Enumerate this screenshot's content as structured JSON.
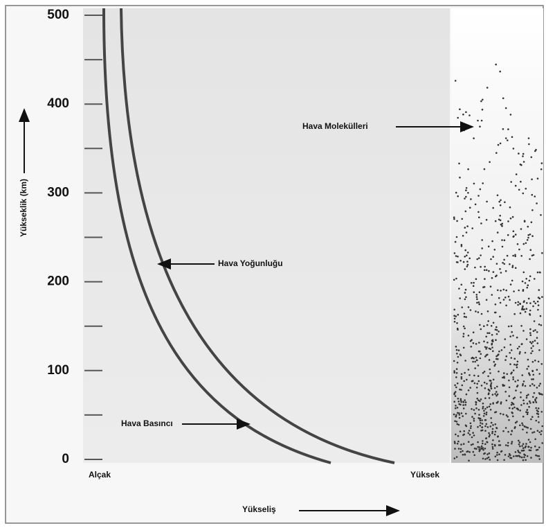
{
  "y_axis": {
    "label": "Yükseklik (km)",
    "ylim": [
      0,
      500
    ],
    "yticks": [
      0,
      100,
      200,
      300,
      400,
      500
    ],
    "minor_ticks": [
      50,
      150,
      250,
      350,
      450
    ]
  },
  "x_axis": {
    "label": "Yükseliş",
    "low_label": "Alçak",
    "high_label": "Yüksek"
  },
  "annotations": {
    "density": "Hava Yoğunluğu",
    "pressure": "Hava Basıncı",
    "molecules": "Hava Molekülleri"
  }
}
